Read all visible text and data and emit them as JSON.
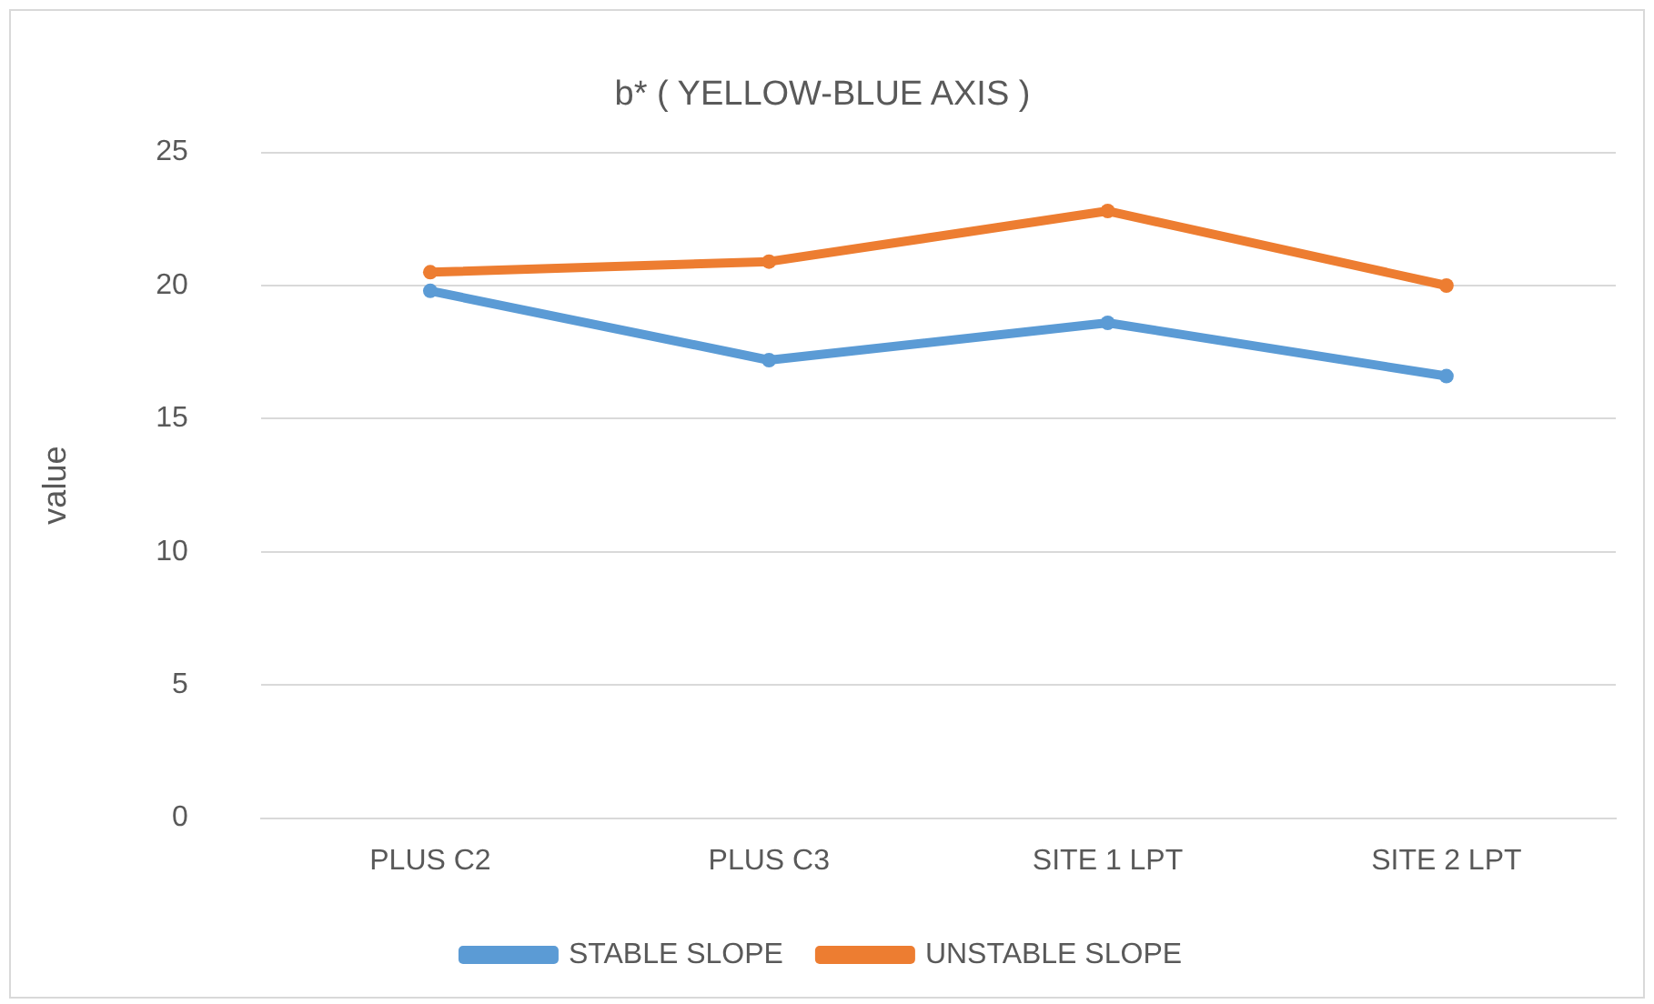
{
  "chart_data": {
    "type": "line",
    "title": "b* ( YELLOW-BLUE AXIS )",
    "ylabel": "value",
    "categories": [
      "PLUS C2",
      "PLUS C3",
      "SITE 1 LPT",
      "SITE 2 LPT"
    ],
    "series": [
      {
        "name": "STABLE SLOPE",
        "color": "#5b9bd5",
        "values": [
          19.8,
          17.2,
          18.6,
          16.6
        ]
      },
      {
        "name": "UNSTABLE SLOPE",
        "color": "#ed7d31",
        "values": [
          20.5,
          20.9,
          22.8,
          20.0
        ]
      }
    ],
    "ylim": [
      0,
      25
    ],
    "yticks": [
      0,
      5,
      10,
      15,
      20,
      25
    ],
    "grid": "y",
    "legend": "bottom",
    "marker": "circle",
    "line_style": "solid"
  }
}
